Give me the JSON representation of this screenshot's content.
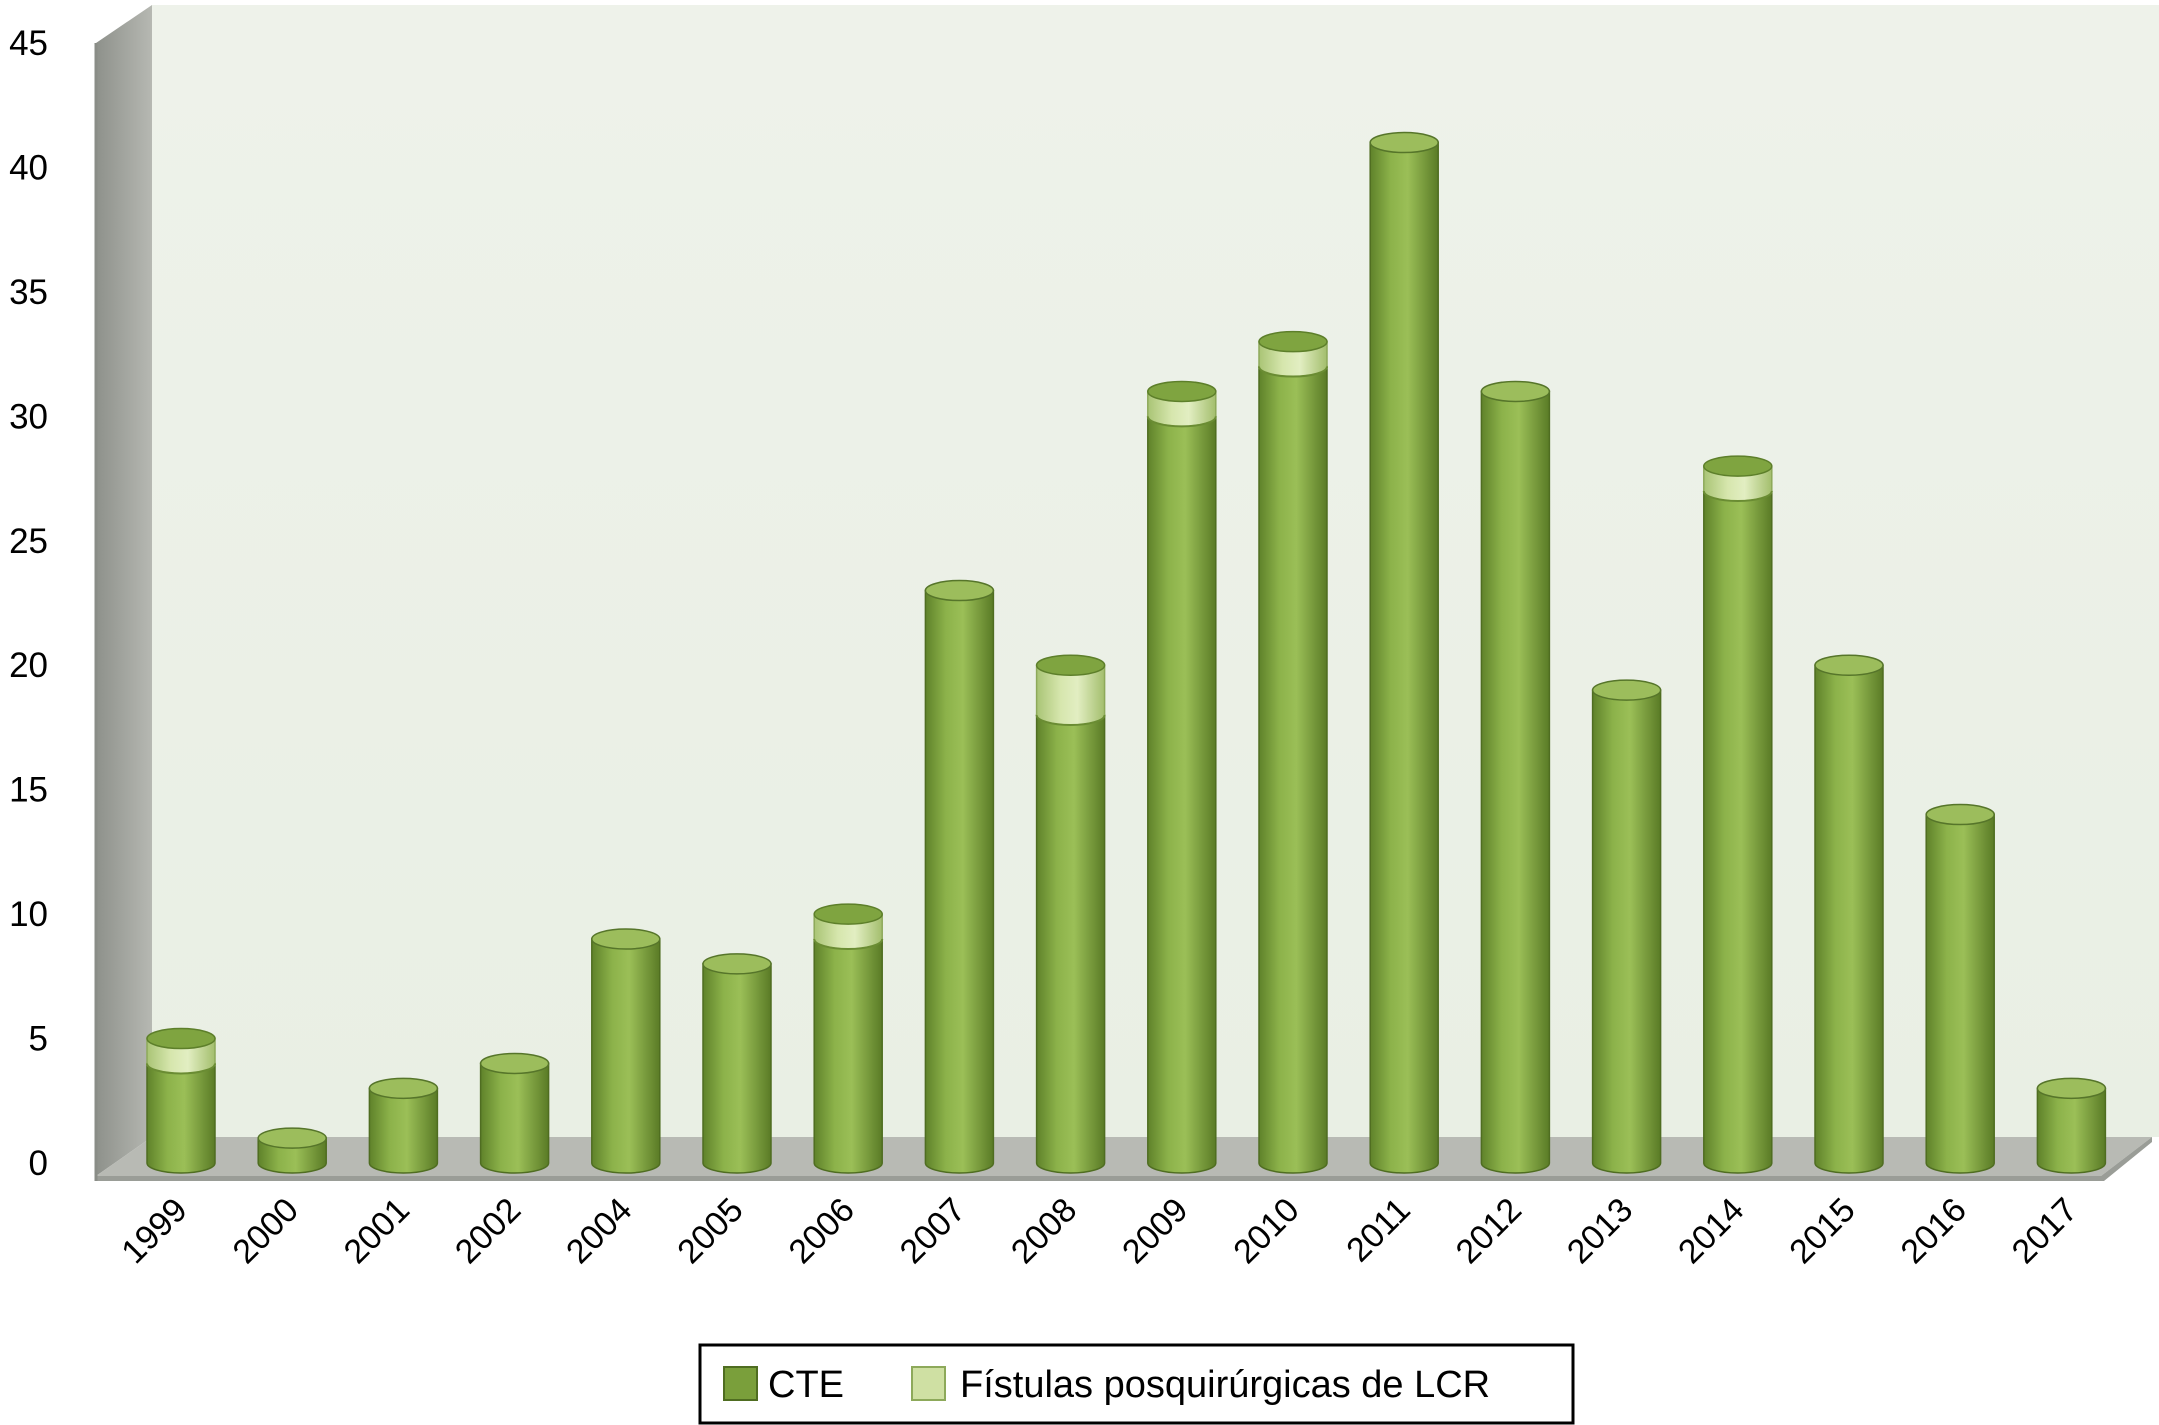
{
  "chart_data": {
    "type": "bar",
    "stacked": true,
    "style": "3d-cylinder",
    "title": "",
    "xlabel": "",
    "ylabel": "",
    "ylim": [
      0,
      45
    ],
    "yticks": [
      "0",
      "5",
      "10",
      "15",
      "20",
      "25",
      "30",
      "35",
      "40",
      "45"
    ],
    "categories": [
      "1999",
      "2000",
      "2001",
      "2002",
      "2004",
      "2005",
      "2006",
      "2007",
      "2008",
      "2009",
      "2010",
      "2011",
      "2012",
      "2013",
      "2014",
      "2015",
      "2016",
      "2017"
    ],
    "series": [
      {
        "name": "CTE",
        "color": "#7a9f3b",
        "values": [
          4,
          1,
          3,
          4,
          9,
          8,
          9,
          23,
          18,
          30,
          32,
          41,
          31,
          19,
          27,
          20,
          14,
          3
        ]
      },
      {
        "name": "Fístulas posquirúrgicas de LCR",
        "color": "#cfe0a3",
        "values": [
          1,
          0,
          0,
          0,
          0,
          0,
          1,
          0,
          2,
          1,
          1,
          0,
          0,
          0,
          1,
          0,
          0,
          0
        ]
      }
    ],
    "legend_position": "bottom-center",
    "grid": false
  }
}
